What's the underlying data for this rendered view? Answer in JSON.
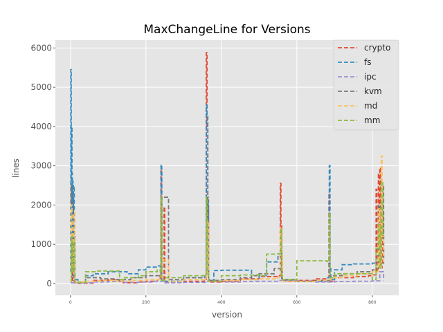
{
  "chart_data": {
    "type": "line",
    "title": "MaxChangeLine for Versions",
    "xlabel": "version",
    "ylabel": "lines",
    "xlim": [
      -40,
      870
    ],
    "ylim": [
      -300,
      6200
    ],
    "x_ticks": [
      0,
      200,
      400,
      600,
      800
    ],
    "y_ticks": [
      0,
      1000,
      2000,
      3000,
      4000,
      5000,
      6000
    ],
    "grid": true,
    "legend_position": "top-right",
    "line_style": "dashed",
    "series": [
      {
        "name": "crypto",
        "color": "#E24A33",
        "x": [
          0,
          2,
          4,
          6,
          8,
          10,
          20,
          60,
          100,
          130,
          140,
          180,
          200,
          230,
          238,
          240,
          242,
          248,
          250,
          300,
          355,
          360,
          362,
          364,
          366,
          370,
          400,
          450,
          500,
          550,
          556,
          558,
          560,
          562,
          570,
          600,
          650,
          680,
          685,
          686,
          688,
          700,
          750,
          790,
          800,
          810,
          812,
          816,
          818,
          820,
          822,
          826,
          830
        ],
        "values": [
          100,
          2100,
          50,
          2200,
          200,
          20,
          10,
          80,
          100,
          60,
          20,
          40,
          60,
          100,
          250,
          2900,
          80,
          1950,
          30,
          60,
          90,
          5880,
          4000,
          300,
          50,
          40,
          60,
          120,
          180,
          200,
          2550,
          1500,
          80,
          60,
          50,
          80,
          120,
          150,
          2300,
          200,
          60,
          150,
          180,
          200,
          220,
          2400,
          300,
          2800,
          500,
          2950,
          400,
          1800,
          600
        ]
      },
      {
        "name": "fs",
        "color": "#348ABD",
        "x": [
          0,
          1,
          2,
          3,
          4,
          5,
          6,
          7,
          8,
          10,
          20,
          40,
          60,
          100,
          130,
          150,
          180,
          200,
          230,
          238,
          240,
          242,
          250,
          300,
          355,
          360,
          362,
          364,
          366,
          370,
          380,
          400,
          450,
          480,
          500,
          520,
          550,
          556,
          558,
          560,
          600,
          640,
          680,
          686,
          688,
          690,
          700,
          720,
          750,
          800,
          810,
          816,
          820,
          824,
          828
        ],
        "values": [
          300,
          5450,
          2500,
          4000,
          2800,
          1200,
          2600,
          800,
          2500,
          100,
          30,
          200,
          250,
          300,
          300,
          250,
          350,
          420,
          450,
          300,
          3030,
          80,
          60,
          150,
          200,
          4550,
          4300,
          2000,
          100,
          80,
          330,
          340,
          340,
          100,
          200,
          550,
          720,
          750,
          1000,
          80,
          50,
          60,
          150,
          3000,
          400,
          100,
          350,
          480,
          500,
          520,
          500,
          1300,
          600,
          2000,
          1800
        ]
      },
      {
        "name": "ipc",
        "color": "#988ED5",
        "x": [
          0,
          10,
          30,
          60,
          100,
          140,
          180,
          220,
          250,
          300,
          360,
          400,
          450,
          500,
          550,
          600,
          650,
          700,
          750,
          800,
          820,
          830
        ],
        "values": [
          20,
          30,
          20,
          40,
          50,
          30,
          40,
          60,
          20,
          30,
          60,
          40,
          50,
          60,
          80,
          60,
          40,
          50,
          60,
          70,
          300,
          80
        ]
      },
      {
        "name": "kvm",
        "color": "#777777",
        "x": [
          0,
          2,
          4,
          8,
          12,
          40,
          80,
          120,
          160,
          200,
          240,
          242,
          260,
          300,
          360,
          362,
          366,
          400,
          450,
          480,
          500,
          540,
          558,
          562,
          600,
          650,
          686,
          690,
          720,
          760,
          800,
          816,
          820,
          824,
          830
        ],
        "values": [
          50,
          2500,
          200,
          1200,
          30,
          150,
          120,
          100,
          150,
          200,
          300,
          2200,
          100,
          150,
          200,
          2200,
          80,
          100,
          150,
          200,
          250,
          380,
          400,
          100,
          60,
          80,
          100,
          200,
          250,
          300,
          350,
          2000,
          400,
          2500,
          500
        ]
      },
      {
        "name": "md",
        "color": "#FBC15E",
        "x": [
          0,
          2,
          4,
          8,
          12,
          40,
          80,
          120,
          160,
          200,
          240,
          242,
          260,
          300,
          360,
          362,
          366,
          400,
          450,
          500,
          550,
          556,
          558,
          562,
          600,
          650,
          686,
          690,
          720,
          760,
          800,
          816,
          820,
          824,
          826,
          830
        ],
        "values": [
          60,
          2000,
          300,
          1800,
          40,
          60,
          80,
          60,
          80,
          100,
          200,
          600,
          50,
          100,
          200,
          1600,
          60,
          80,
          100,
          120,
          160,
          1400,
          800,
          60,
          50,
          80,
          100,
          150,
          200,
          250,
          300,
          1900,
          400,
          3250,
          1200,
          500
        ]
      },
      {
        "name": "mm",
        "color": "#8EBA42",
        "x": [
          0,
          2,
          4,
          8,
          12,
          40,
          70,
          100,
          130,
          140,
          180,
          200,
          230,
          238,
          240,
          242,
          250,
          300,
          355,
          360,
          362,
          364,
          366,
          400,
          450,
          500,
          520,
          550,
          556,
          558,
          560,
          562,
          600,
          640,
          680,
          686,
          688,
          700,
          750,
          800,
          810,
          816,
          820,
          824,
          828
        ],
        "values": [
          80,
          1200,
          300,
          1050,
          30,
          300,
          320,
          320,
          100,
          150,
          200,
          300,
          350,
          300,
          2200,
          80,
          150,
          200,
          240,
          2200,
          1000,
          300,
          60,
          200,
          220,
          200,
          750,
          760,
          780,
          1400,
          200,
          100,
          580,
          580,
          560,
          1800,
          150,
          250,
          250,
          100,
          900,
          1500,
          400,
          2600,
          1200
        ]
      }
    ]
  }
}
